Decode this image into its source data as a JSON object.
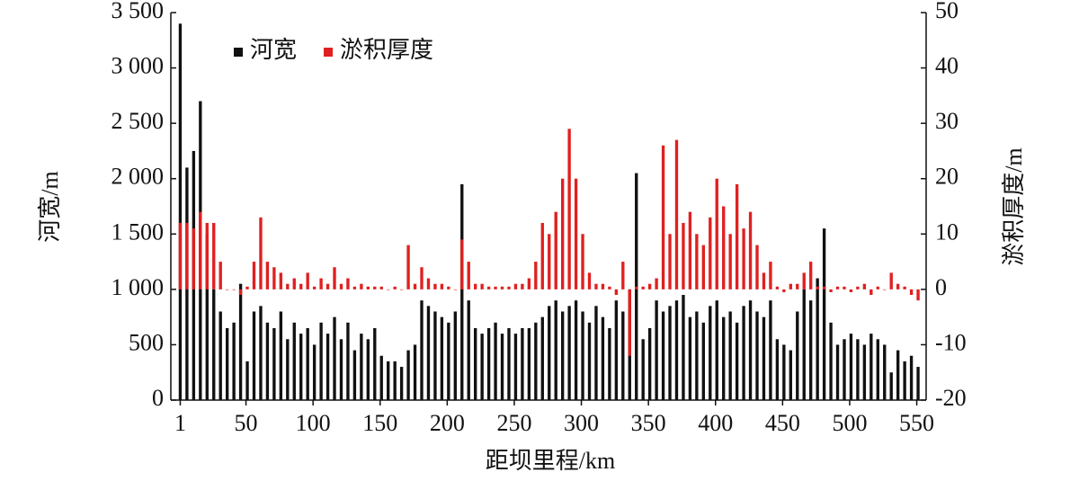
{
  "chart_data": {
    "type": "bar",
    "x_label": "距坝里程/km",
    "y_label": "河宽/m",
    "y2_label": "淤积厚度/m",
    "x": [
      1,
      6,
      11,
      16,
      21,
      26,
      31,
      36,
      41,
      46,
      51,
      56,
      61,
      66,
      71,
      76,
      81,
      86,
      91,
      96,
      101,
      106,
      111,
      116,
      121,
      126,
      131,
      136,
      141,
      146,
      151,
      156,
      161,
      166,
      171,
      176,
      181,
      186,
      191,
      196,
      201,
      206,
      211,
      216,
      221,
      226,
      231,
      236,
      241,
      246,
      251,
      256,
      261,
      266,
      271,
      276,
      281,
      286,
      291,
      296,
      301,
      306,
      311,
      316,
      321,
      326,
      331,
      336,
      341,
      346,
      351,
      356,
      361,
      366,
      371,
      376,
      381,
      386,
      391,
      396,
      401,
      406,
      411,
      416,
      421,
      426,
      431,
      436,
      441,
      446,
      451,
      456,
      461,
      466,
      471,
      476,
      481,
      486,
      491,
      496,
      501,
      506,
      511,
      516,
      521,
      526,
      531,
      536,
      541,
      546,
      551
    ],
    "series": [
      {
        "name": "河宽",
        "color": "#111111",
        "axis": "y",
        "values": [
          3400,
          2100,
          2250,
          2700,
          1500,
          1000,
          800,
          650,
          700,
          1050,
          350,
          800,
          850,
          700,
          650,
          800,
          550,
          700,
          600,
          650,
          500,
          700,
          600,
          750,
          550,
          700,
          450,
          600,
          550,
          650,
          400,
          350,
          350,
          300,
          450,
          500,
          900,
          850,
          800,
          750,
          700,
          800,
          1950,
          900,
          650,
          600,
          650,
          700,
          600,
          650,
          600,
          650,
          650,
          700,
          750,
          850,
          900,
          800,
          850,
          900,
          800,
          700,
          850,
          750,
          650,
          900,
          800,
          1000,
          2050,
          550,
          650,
          900,
          800,
          850,
          900,
          950,
          750,
          800,
          700,
          850,
          900,
          750,
          800,
          700,
          850,
          900,
          800,
          750,
          900,
          550,
          500,
          450,
          800,
          1000,
          900,
          1100,
          1550,
          700,
          500,
          550,
          600,
          550,
          500,
          600,
          550,
          500,
          250,
          450,
          350,
          400,
          300
        ]
      },
      {
        "name": "淤积厚度",
        "color": "#e02020",
        "axis": "y2",
        "values": [
          12,
          12,
          11,
          14,
          12,
          12,
          5,
          0,
          0,
          -1,
          0.5,
          5,
          13,
          5,
          4,
          3,
          1,
          2,
          1,
          3,
          0.5,
          2,
          1,
          4,
          1,
          2,
          0.5,
          1,
          0.5,
          0.5,
          0.5,
          0,
          0.5,
          0,
          8,
          1,
          4,
          2,
          1,
          1,
          0.5,
          0,
          9,
          5,
          1,
          1,
          0.5,
          0.5,
          0.5,
          0.5,
          1,
          1,
          2,
          5,
          12,
          10,
          14,
          20,
          29,
          20,
          10,
          3,
          1,
          1,
          0.5,
          -1,
          5,
          -12,
          0.5,
          0.5,
          1,
          2,
          26,
          10,
          27,
          12,
          14,
          10,
          8,
          13,
          20,
          15,
          10,
          19,
          11,
          14,
          8,
          3,
          5,
          0.5,
          -0.5,
          1,
          1,
          3,
          5,
          0.5,
          0.5,
          -0.5,
          0.5,
          0.5,
          -0.5,
          0.5,
          1,
          -1,
          0.5,
          0,
          3,
          1,
          0.5,
          -1,
          -2
        ]
      }
    ],
    "xlim": [
      -6,
      557
    ],
    "xticks": [
      1,
      50,
      100,
      150,
      200,
      250,
      300,
      350,
      400,
      450,
      500,
      550
    ],
    "ylim": [
      0,
      3500
    ],
    "yticks": [
      0,
      500,
      {
        "value": 1000,
        "label": "1 000"
      },
      {
        "value": 1500,
        "label": "1 500"
      },
      {
        "value": 2000,
        "label": "2 000"
      },
      {
        "value": 2500,
        "label": "2 500"
      },
      {
        "value": 3000,
        "label": "3 000"
      },
      {
        "value": 3500,
        "label": "3 500"
      }
    ],
    "y2lim": [
      -20,
      50
    ],
    "y2ticks": [
      -20,
      -10,
      0,
      10,
      20,
      30,
      40,
      50
    ],
    "legend": "upper left",
    "grid": false
  }
}
